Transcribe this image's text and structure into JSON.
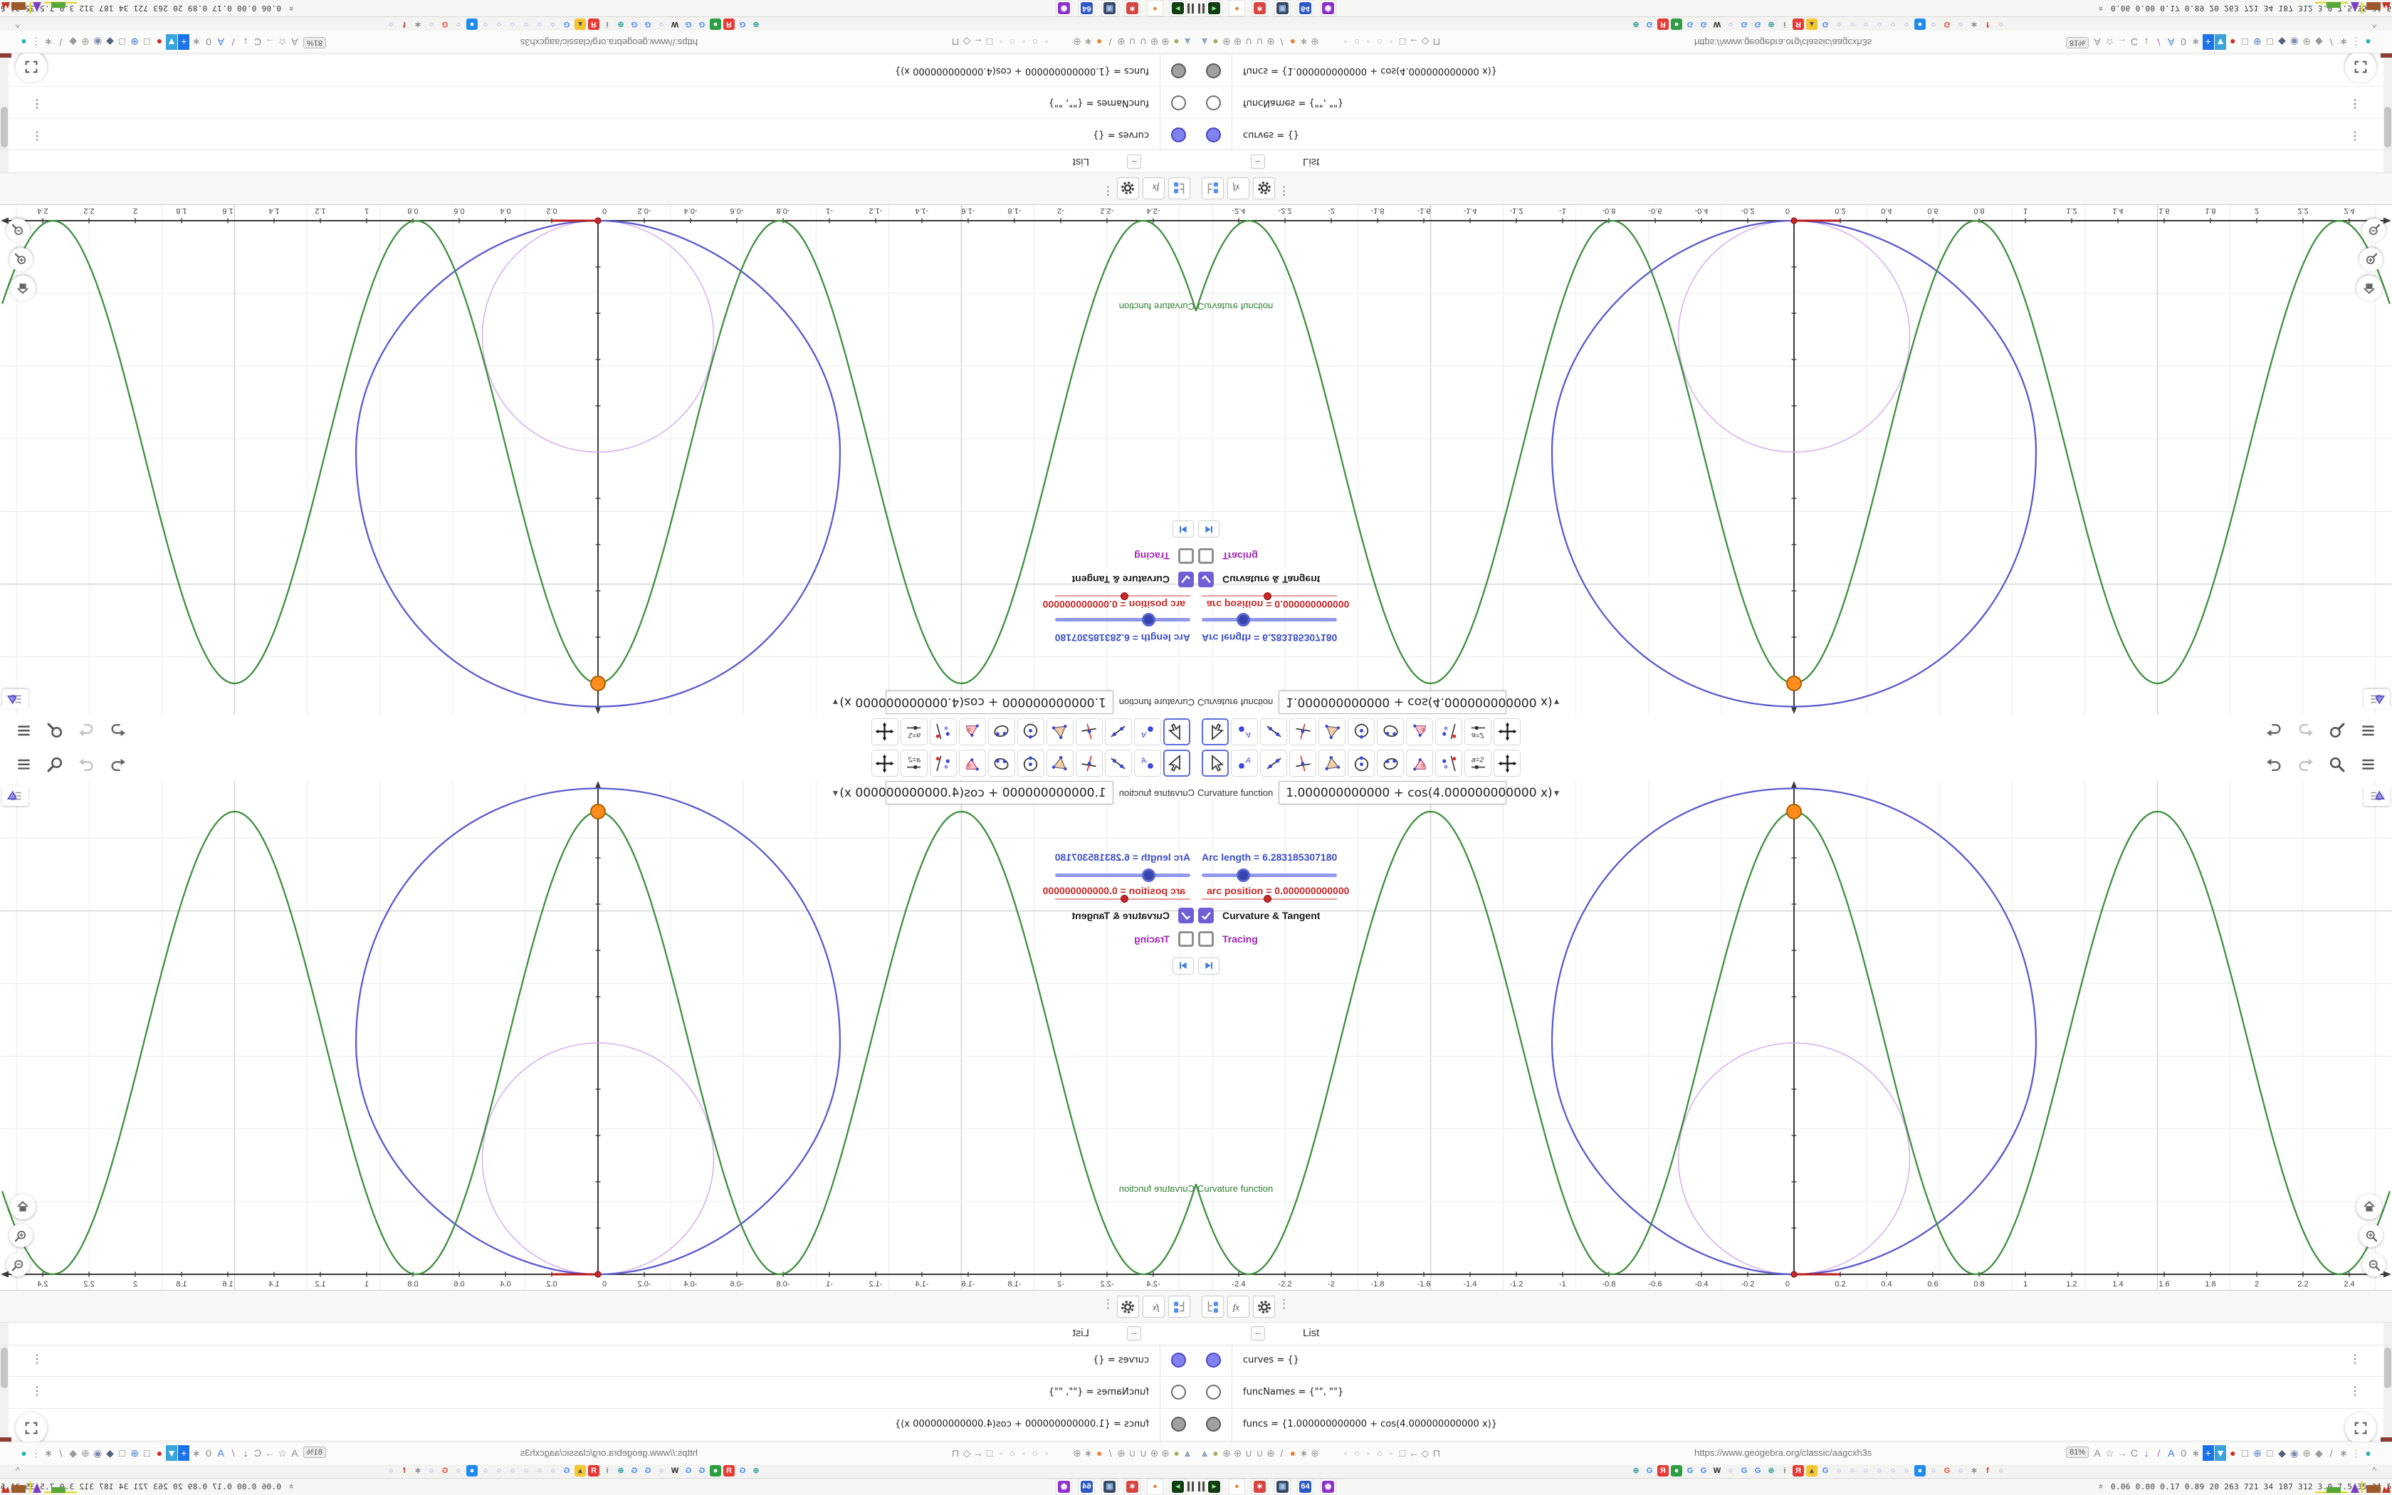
{
  "app": {
    "toolbar": {
      "tools": [
        {
          "id": "move",
          "selected": true
        },
        {
          "id": "point",
          "selected": false
        },
        {
          "id": "line",
          "selected": false
        },
        {
          "id": "perpendicular",
          "selected": false
        },
        {
          "id": "polygon",
          "selected": false
        },
        {
          "id": "circle",
          "selected": false
        },
        {
          "id": "ellipse",
          "selected": false
        },
        {
          "id": "angle",
          "selected": false
        },
        {
          "id": "reflect",
          "selected": false
        },
        {
          "id": "slider",
          "selected": false
        },
        {
          "id": "move-view",
          "selected": false
        }
      ]
    },
    "graphics": {
      "input_caption": "Curvature function",
      "input_value": "1.000000000000 + cos(4.000000000000 x)",
      "sliders": [
        {
          "label": "Arc length = 6.283185307180",
          "color": "#3c4ec4"
        },
        {
          "label": "arc position = 0.000000000000",
          "color": "#c62828"
        }
      ],
      "checkboxes": [
        {
          "label": "Curvature & Tangent",
          "checked": true
        },
        {
          "label": "Tracing",
          "checked": false
        }
      ]
    },
    "algebra": {
      "header": "List",
      "collapse_glyph": "–",
      "rows": [
        {
          "text": "curves = {}",
          "marker_fill": "#8282ef",
          "marker_border": "#4646c8",
          "has_menu": true
        },
        {
          "text": "funcNames = {\"\", \"\"}",
          "marker_fill": "#ffffff",
          "marker_border": "#6e6e6e",
          "has_menu": true
        },
        {
          "text": "funcs = {1.000000000000 + cos(4.000000000000 x)}",
          "marker_fill": "#a1a1a1",
          "marker_border": "#5a5a5a",
          "has_menu": false
        }
      ]
    }
  },
  "browser": {
    "url": "https://www.geogebra.org/classic/aagcxh3s",
    "zoom_badge": "81%",
    "overflow_chevron": "^",
    "nav_left_icons": [
      {
        "name": "balloon-icon",
        "glyph": "▲",
        "color": "#8fa3c2"
      },
      {
        "name": "avocado-icon",
        "glyph": "●",
        "color": "#9fb25f"
      },
      {
        "name": "globe-icon",
        "glyph": "⊕",
        "color": "#9a9a9a"
      },
      {
        "name": "globe-icon",
        "glyph": "⊕",
        "color": "#9a9a9a"
      },
      {
        "name": "hook-icon",
        "glyph": "∪",
        "color": "#9a9a9a"
      },
      {
        "name": "hook-icon",
        "glyph": "∪",
        "color": "#9a9a9a"
      },
      {
        "name": "globe-icon",
        "glyph": "⊕",
        "color": "#9a9a9a"
      },
      {
        "name": "wrench-icon",
        "glyph": "/",
        "color": "#8d8d8d"
      },
      {
        "name": "firefox-icon",
        "glyph": "●",
        "color": "#e8833a"
      },
      {
        "name": "gear-icon",
        "glyph": "∗",
        "color": "#8d8d8d"
      },
      {
        "name": "globe-icon",
        "glyph": "⊕",
        "color": "#9a9a9a"
      }
    ],
    "nav_mini_icons": [
      {
        "name": "dot-icon",
        "glyph": "◦",
        "color": "#b5b5b5"
      },
      {
        "name": "circle-icon",
        "glyph": "○",
        "color": "#b5b5b5"
      },
      {
        "name": "dot-icon",
        "glyph": "◦",
        "color": "#b5b5b5"
      },
      {
        "name": "circle-icon",
        "glyph": "○",
        "color": "#b5b5b5"
      },
      {
        "name": "dot-icon",
        "glyph": "◦",
        "color": "#b5b5b5"
      },
      {
        "name": "folder-icon",
        "glyph": "□",
        "color": "#8a8a8a"
      },
      {
        "name": "back-arrow-icon",
        "glyph": "←",
        "color": "#8a8a8a"
      },
      {
        "name": "shield-icon",
        "glyph": "◇",
        "color": "#8a8a8a"
      },
      {
        "name": "lock-icon",
        "glyph": "⊓",
        "color": "#8a8a8a"
      }
    ],
    "nav_right_icons": [
      {
        "name": "translate-icon",
        "glyph": "A",
        "color": "#8a8a8a"
      },
      {
        "name": "bookmark-star-icon",
        "glyph": "☆",
        "color": "#8a8a8a"
      },
      {
        "name": "forward-icon",
        "glyph": "→",
        "color": "#b0b0b0"
      },
      {
        "name": "reload-icon",
        "glyph": "C",
        "color": "#8a8a8a"
      },
      {
        "name": "download-icon",
        "glyph": "↓",
        "color": "#6a6a6a"
      },
      {
        "name": "pencil-icon",
        "glyph": "/",
        "color": "#c06a9a"
      },
      {
        "name": "translate-blue-icon",
        "glyph": "A",
        "color": "#3b78e7"
      },
      {
        "name": "mouse-icon",
        "glyph": "0",
        "color": "#8a8a8a"
      },
      {
        "name": "gear-icon",
        "glyph": "∗",
        "color": "#8a8a8a"
      },
      {
        "name": "add-icon",
        "glyph": "+",
        "color": "#ffffff",
        "bg": "#1a73e8"
      },
      {
        "name": "shield-down-icon",
        "glyph": "▼",
        "color": "#ffffff",
        "bg": "#38a3dc"
      },
      {
        "name": "recorder-icon",
        "glyph": "●",
        "color": "#cc2a22"
      },
      {
        "name": "trash-icon",
        "glyph": "□",
        "color": "#777777"
      },
      {
        "name": "globe-blue-icon",
        "glyph": "⊕",
        "color": "#4a7fd1"
      },
      {
        "name": "trash-icon",
        "glyph": "□",
        "color": "#777777"
      },
      {
        "name": "ublock-icon",
        "glyph": "◆",
        "color": "#55627d"
      },
      {
        "name": "badge-icon",
        "glyph": "◉",
        "color": "#7f8ab0"
      },
      {
        "name": "globe-icon",
        "glyph": "⊕",
        "color": "#9a9a9a"
      },
      {
        "name": "puzzle-icon",
        "glyph": "◆",
        "color": "#999999"
      },
      {
        "name": "wrench-icon",
        "glyph": "/",
        "color": "#8a8a8a"
      },
      {
        "name": "gear-icon",
        "glyph": "∗",
        "color": "#8a8a8a"
      },
      {
        "name": "overflow-kebab-icon",
        "glyph": "⋮",
        "color": "#999999"
      },
      {
        "name": "account-dot-icon",
        "glyph": "●",
        "color": "#2ab7a9"
      }
    ],
    "favicons": [
      {
        "name": "tab-favicon",
        "glyph": "⊕",
        "color": "#3aa6a0"
      },
      {
        "name": "tab-favicon",
        "glyph": "G",
        "color": "#4285f4"
      },
      {
        "name": "tab-favicon",
        "glyph": "Я",
        "color": "#ffffff",
        "bg": "#e53935"
      },
      {
        "name": "tab-favicon",
        "glyph": "●",
        "color": "#ffffff",
        "bg": "#2e9e44"
      },
      {
        "name": "tab-favicon",
        "glyph": "G",
        "color": "#4285f4"
      },
      {
        "name": "tab-favicon",
        "glyph": "G",
        "color": "#4285f4"
      },
      {
        "name": "tab-favicon",
        "glyph": "W",
        "color": "#222222"
      },
      {
        "name": "tab-favicon",
        "glyph": "○",
        "color": "#8f97c9"
      },
      {
        "name": "tab-favicon",
        "glyph": "G",
        "color": "#4285f4"
      },
      {
        "name": "tab-favicon",
        "glyph": "G",
        "color": "#4285f4"
      },
      {
        "name": "tab-favicon",
        "glyph": "⊕",
        "color": "#3aa6a0"
      },
      {
        "name": "tab-favicon",
        "glyph": "i",
        "color": "#777777"
      },
      {
        "name": "tab-favicon",
        "glyph": "Я",
        "color": "#ffffff",
        "bg": "#e53935"
      },
      {
        "name": "tab-favicon",
        "glyph": "▴",
        "color": "#555555",
        "bg": "#f4c630"
      },
      {
        "name": "tab-favicon",
        "glyph": "G",
        "color": "#4285f4"
      },
      {
        "name": "tab-favicon",
        "glyph": "○",
        "color": "#8f97c9"
      },
      {
        "name": "tab-favicon",
        "glyph": "○",
        "color": "#8f97c9"
      },
      {
        "name": "tab-favicon",
        "glyph": "○",
        "color": "#8f97c9"
      },
      {
        "name": "tab-favicon",
        "glyph": "○",
        "color": "#8f97c9"
      },
      {
        "name": "tab-favicon",
        "glyph": "○",
        "color": "#8f97c9"
      },
      {
        "name": "tab-favicon",
        "glyph": "○",
        "color": "#8f97c9"
      },
      {
        "name": "tab-favicon",
        "glyph": "●",
        "color": "#ffffff",
        "bg": "#1f8ceb"
      },
      {
        "name": "tab-favicon",
        "glyph": "○",
        "color": "#8f97c9"
      },
      {
        "name": "tab-favicon",
        "glyph": "G",
        "color": "#ea4335"
      },
      {
        "name": "tab-favicon",
        "glyph": "○",
        "color": "#8f97c9"
      },
      {
        "name": "tab-favicon",
        "glyph": "∗",
        "color": "#888888"
      },
      {
        "name": "tab-favicon",
        "glyph": "f",
        "color": "#c0392b"
      },
      {
        "name": "tab-favicon",
        "glyph": "○",
        "color": "#8f97c9"
      }
    ]
  },
  "taskbar": {
    "apps": [
      {
        "name": "terminal-app-icon",
        "glyph": "▸",
        "color": "#8ef08e",
        "bg": "#123c12"
      },
      {
        "name": "firefox-app-icon",
        "glyph": "●",
        "color": "#e8833a",
        "bg": "#ffffff"
      },
      {
        "name": "settings-app-icon",
        "glyph": "∗",
        "color": "#ffffff",
        "bg": "#d64541"
      },
      {
        "name": "display-app-icon",
        "glyph": "▣",
        "color": "#9fc3ef",
        "bg": "#3a4a63"
      },
      {
        "name": "save-app-icon",
        "glyph": "64",
        "color": "#ffffff",
        "bg": "#2f58c4"
      },
      {
        "name": "mask-app-icon",
        "glyph": "◉",
        "color": "#ffffff",
        "bg": "#8e30c9"
      }
    ],
    "stats": "0.06 0.00 0.17 0.89  20  263  721  34  187  312  3.0  7.5  35  31  57707386"
  },
  "chart_data": {
    "type": "line",
    "title": "",
    "xlabel": "",
    "ylabel": "",
    "x_axis": {
      "min": -2.585,
      "max": 2.585,
      "tick_step": 0.2,
      "tick_min": -2.4,
      "tick_max": 2.4,
      "grid_step": 0.31416,
      "major_grid_step": 1.5708
    },
    "y_axis": {
      "min": -0.07,
      "max": 2.13,
      "tick_step": 0.2,
      "tick_min": 0.2,
      "tick_max": 2.0
    },
    "grid": true,
    "legend": false,
    "series": [
      {
        "name": "f(x) = 1.000000000000 + cos(4.000000000000 x)",
        "kind": "function",
        "expr": "1 + cos(4 x)",
        "color": "#3f8f3f",
        "domain": [
          -2.585,
          2.585
        ]
      },
      {
        "name": "closed curvature curve",
        "kind": "closed-curve",
        "color": "#5a5ad0",
        "top": [
          0,
          2.1
        ],
        "bottom": [
          0,
          0
        ],
        "left": [
          -1.046,
          1.0
        ],
        "right": [
          1.046,
          1.0
        ]
      },
      {
        "name": "osculating circle",
        "kind": "circle",
        "center": [
          0,
          0.5
        ],
        "radius": 0.5,
        "color": "#d9b3ef"
      },
      {
        "name": "arc position segment",
        "kind": "segment",
        "from": [
          0,
          0
        ],
        "to": [
          0.2,
          0
        ],
        "color": "#b71c1c"
      }
    ],
    "points": [
      {
        "x": 0,
        "y": 2,
        "color": "#ff8c1c",
        "border": "#a85f00",
        "name": "curve-point"
      },
      {
        "x": 0,
        "y": 0,
        "color": "#c62828",
        "border": "#8e1414",
        "name": "arc-start-point"
      }
    ],
    "annotations": [
      {
        "text": "Curvature function",
        "x": -2.57,
        "y": 0.44,
        "color": "#2f7d32"
      }
    ]
  }
}
